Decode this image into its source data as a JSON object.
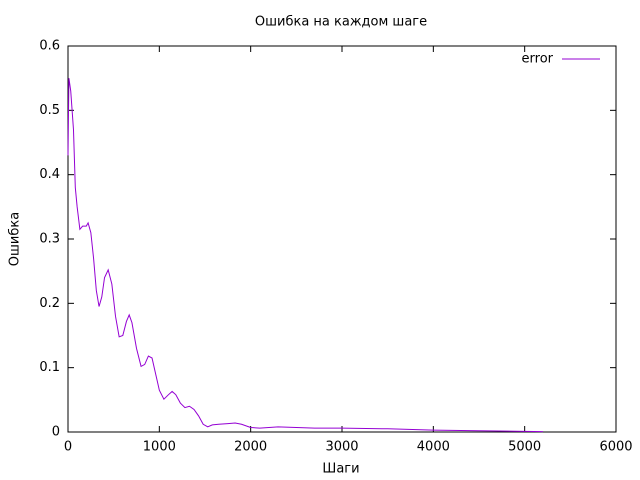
{
  "chart_data": {
    "type": "line",
    "title": "Ошибка на каждом шаге",
    "xlabel": "Шаги",
    "ylabel": "Ошибка",
    "legend_position": "top-right",
    "xlim": [
      0,
      6000
    ],
    "xticks": [
      0,
      1000,
      2000,
      3000,
      4000,
      5000,
      6000
    ],
    "ylim": [
      0,
      0.6
    ],
    "yticks": [
      0,
      0.1,
      0.2,
      0.3,
      0.4,
      0.5,
      0.6
    ],
    "x": [
      0,
      10,
      30,
      60,
      80,
      100,
      130,
      160,
      200,
      220,
      250,
      280,
      310,
      340,
      370,
      400,
      440,
      480,
      520,
      560,
      600,
      640,
      670,
      700,
      750,
      800,
      840,
      880,
      920,
      960,
      1000,
      1050,
      1100,
      1140,
      1180,
      1230,
      1280,
      1330,
      1380,
      1430,
      1480,
      1530,
      1580,
      1650,
      1750,
      1830,
      1900,
      2000,
      2100,
      2300,
      2500,
      2700,
      3000,
      3500,
      4000,
      4500,
      5000,
      5200
    ],
    "series": [
      {
        "name": "error",
        "color": "#9400d3",
        "values": [
          0.43,
          0.55,
          0.53,
          0.47,
          0.38,
          0.35,
          0.315,
          0.32,
          0.32,
          0.325,
          0.31,
          0.27,
          0.22,
          0.195,
          0.21,
          0.24,
          0.252,
          0.23,
          0.18,
          0.148,
          0.15,
          0.172,
          0.182,
          0.17,
          0.13,
          0.102,
          0.105,
          0.118,
          0.115,
          0.09,
          0.065,
          0.051,
          0.058,
          0.063,
          0.058,
          0.045,
          0.038,
          0.04,
          0.035,
          0.025,
          0.012,
          0.008,
          0.011,
          0.012,
          0.013,
          0.014,
          0.012,
          0.007,
          0.006,
          0.008,
          0.007,
          0.006,
          0.006,
          0.005,
          0.003,
          0.002,
          0.001,
          0.0005
        ]
      }
    ]
  }
}
